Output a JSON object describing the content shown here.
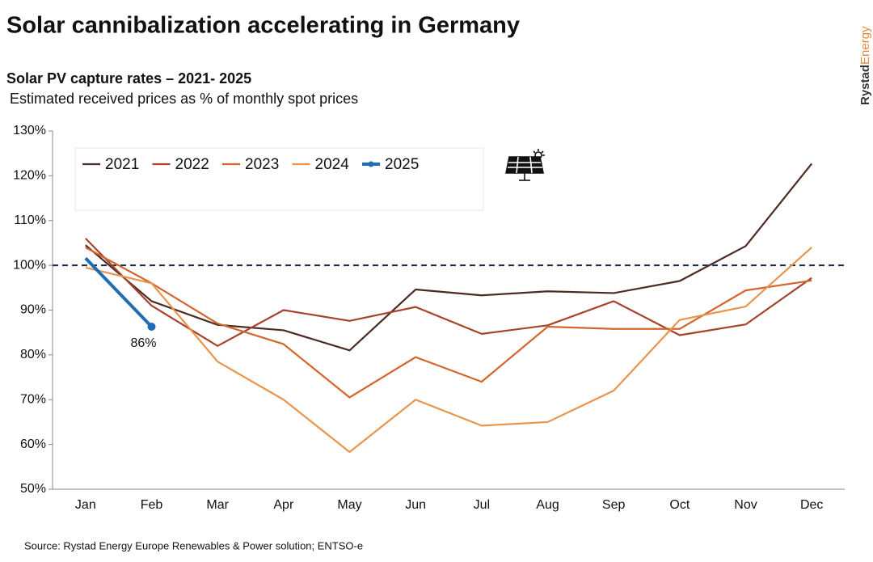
{
  "chart_data": {
    "type": "line",
    "title": "Solar cannibalization accelerating in Germany",
    "subtitle": "Solar PV capture rates – 2021- 2025",
    "description": "Estimated received prices as % of monthly spot prices",
    "source": "Source: Rystad Energy Europe Renewables & Power solution; ENTSO-e",
    "brand": [
      "Rystad",
      "Energy"
    ],
    "categories": [
      "Jan",
      "Feb",
      "Mar",
      "Apr",
      "May",
      "Jun",
      "Jul",
      "Aug",
      "Sep",
      "Oct",
      "Nov",
      "Dec"
    ],
    "series": [
      {
        "name": "2021",
        "color": "#4b2b24",
        "values": [
          104.5,
          92,
          86.7,
          85.5,
          81,
          94.6,
          93.3,
          94.2,
          93.8,
          96.5,
          104.3,
          122.7
        ]
      },
      {
        "name": "2022",
        "color": "#a5442a",
        "values": [
          106,
          91,
          82,
          90,
          87.6,
          90.7,
          84.7,
          86.6,
          92,
          84.4,
          86.8,
          97.2
        ]
      },
      {
        "name": "2023",
        "color": "#d4652c",
        "values": [
          104,
          96,
          87,
          82.4,
          70.5,
          79.5,
          74,
          86.3,
          85.8,
          85.8,
          94.4,
          96.6
        ]
      },
      {
        "name": "2024",
        "color": "#e9944c",
        "values": [
          99.5,
          96,
          78.5,
          70,
          58.3,
          70,
          64.2,
          65,
          72,
          87.8,
          90.8,
          104
        ]
      },
      {
        "name": "2025",
        "color": "#1f6db5",
        "width": 4,
        "marker": true,
        "values": [
          101.6,
          86.3,
          null,
          null,
          null,
          null,
          null,
          null,
          null,
          null,
          null,
          null
        ],
        "value_labels": [
          null,
          "86%",
          null,
          null,
          null,
          null,
          null,
          null,
          null,
          null,
          null,
          null
        ]
      }
    ],
    "ylim": [
      50,
      130
    ],
    "yticks": [
      {
        "value": 50,
        "label": "50%"
      },
      {
        "value": 60,
        "label": "60%"
      },
      {
        "value": 70,
        "label": "70%"
      },
      {
        "value": 80,
        "label": "80%"
      },
      {
        "value": 90,
        "label": "90%"
      },
      {
        "value": 100,
        "label": "100%"
      },
      {
        "value": 110,
        "label": "110%"
      },
      {
        "value": 120,
        "label": "120%"
      },
      {
        "value": 130,
        "label": "130%"
      }
    ],
    "reference_line": 100,
    "grid": false
  }
}
